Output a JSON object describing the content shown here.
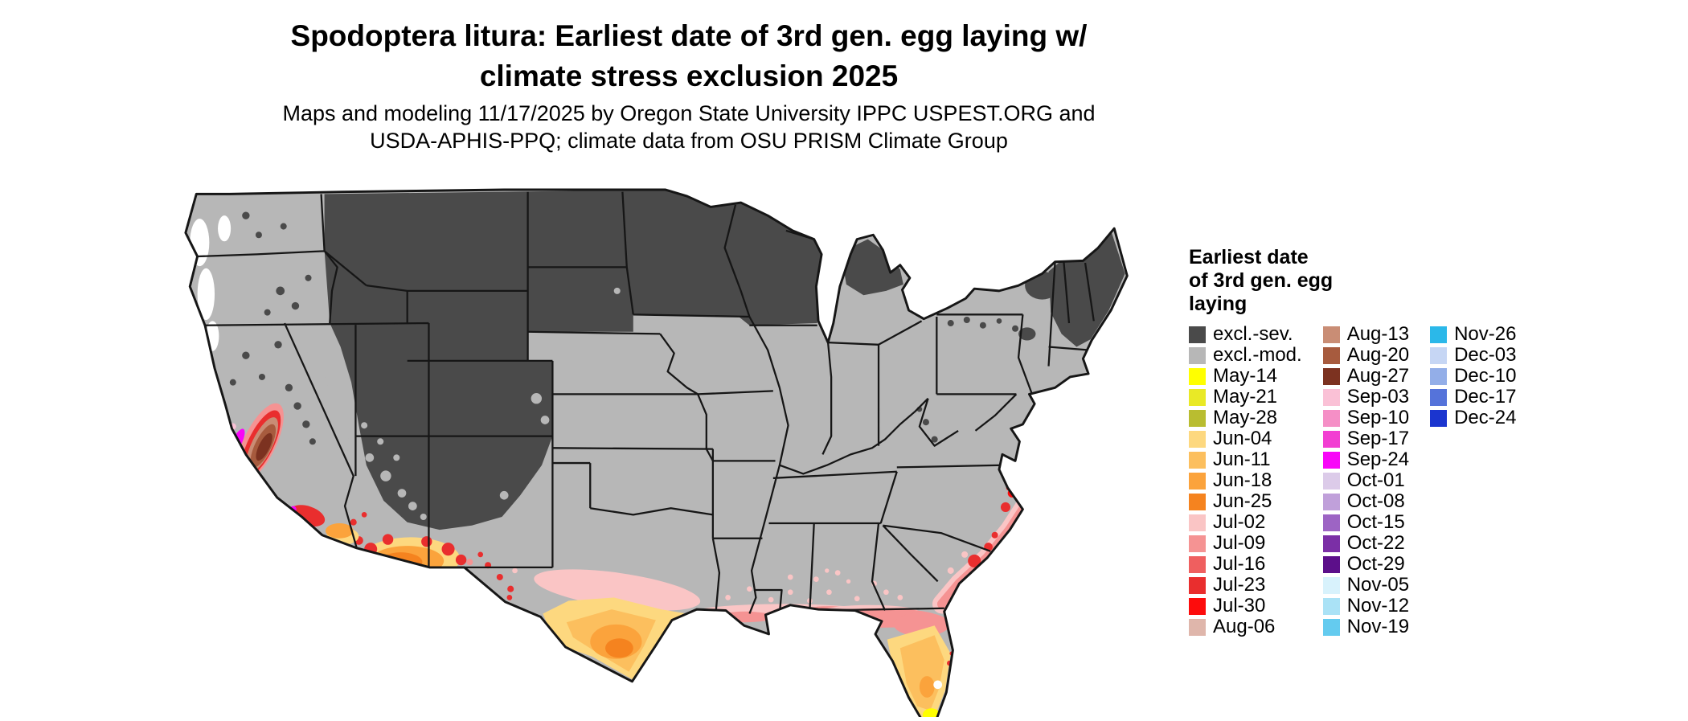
{
  "page": {
    "background_color": "#ffffff"
  },
  "header": {
    "title_line1": "Spodoptera litura: Earliest date of 3rd gen. egg laying w/",
    "title_line2": "climate stress exclusion 2025",
    "subtitle_line1": "Maps and modeling 11/17/2025 by Oregon State University IPPC USPEST.ORG and",
    "subtitle_line2": "USDA-APHIS-PPQ; climate data from OSU PRISM Climate Group"
  },
  "map": {
    "description": "Continental United States choropleth of earliest date of 3rd generation egg laying with climate stress exclusion",
    "base_excl_moderate_color": "#b7b7b7",
    "excl_severe_color": "#4a4a4a",
    "no_data_color": "#ffffff",
    "state_border_color": "#161616"
  },
  "legend": {
    "title_lines": [
      "Earliest date",
      "of 3rd gen. egg",
      "laying"
    ],
    "columns": [
      [
        {
          "label": "excl.-sev.",
          "color": "#4a4a4a"
        },
        {
          "label": "excl.-mod.",
          "color": "#b7b7b7"
        },
        {
          "label": "May-14",
          "color": "#ffff00"
        },
        {
          "label": "May-21",
          "color": "#e9e926"
        },
        {
          "label": "May-28",
          "color": "#b9bd30"
        },
        {
          "label": "Jun-04",
          "color": "#fdd87f"
        },
        {
          "label": "Jun-11",
          "color": "#fcbf5e"
        },
        {
          "label": "Jun-18",
          "color": "#fba33c"
        },
        {
          "label": "Jun-25",
          "color": "#f5831f"
        },
        {
          "label": "Jul-02",
          "color": "#fac5c5"
        },
        {
          "label": "Jul-09",
          "color": "#f59393"
        },
        {
          "label": "Jul-16",
          "color": "#ef5f5f"
        },
        {
          "label": "Jul-23",
          "color": "#e92e2e"
        },
        {
          "label": "Jul-30",
          "color": "#fd0c0c"
        },
        {
          "label": "Aug-06",
          "color": "#dfb6ab"
        }
      ],
      [
        {
          "label": "Aug-13",
          "color": "#c98d75"
        },
        {
          "label": "Aug-20",
          "color": "#a75b3e"
        },
        {
          "label": "Aug-27",
          "color": "#7c3220"
        },
        {
          "label": "Sep-03",
          "color": "#fac1d6"
        },
        {
          "label": "Sep-10",
          "color": "#f58fc6"
        },
        {
          "label": "Sep-17",
          "color": "#f23ed2"
        },
        {
          "label": "Sep-24",
          "color": "#f806f8"
        },
        {
          "label": "Oct-01",
          "color": "#dccbe9"
        },
        {
          "label": "Oct-08",
          "color": "#c0a0da"
        },
        {
          "label": "Oct-15",
          "color": "#9d64c4"
        },
        {
          "label": "Oct-22",
          "color": "#7b2fa6"
        },
        {
          "label": "Oct-29",
          "color": "#5c0f8a"
        },
        {
          "label": "Nov-05",
          "color": "#d8f2fc"
        },
        {
          "label": "Nov-12",
          "color": "#aae2f6"
        },
        {
          "label": "Nov-19",
          "color": "#64cbef"
        }
      ],
      [
        {
          "label": "Nov-26",
          "color": "#2bb8e9"
        },
        {
          "label": "Dec-03",
          "color": "#c6d6f4"
        },
        {
          "label": "Dec-10",
          "color": "#93aee8"
        },
        {
          "label": "Dec-17",
          "color": "#5573da"
        },
        {
          "label": "Dec-24",
          "color": "#1b35cf"
        }
      ]
    ]
  }
}
